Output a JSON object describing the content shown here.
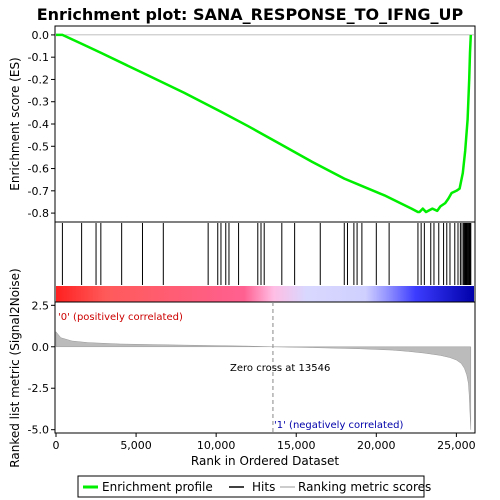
{
  "chart_data": {
    "type": "line",
    "title": "Enrichment plot: SANA_RESPONSE_TO_IFNG_UP",
    "panels": {
      "enrichment": {
        "ylabel": "Enrichment score (ES)",
        "ylim": [
          -0.84,
          0.04
        ],
        "yticks": [
          "0.0",
          "-0.1",
          "-0.2",
          "-0.3",
          "-0.4",
          "-0.5",
          "-0.6",
          "-0.7",
          "-0.8"
        ],
        "ytick_values": [
          0.0,
          -0.1,
          -0.2,
          -0.3,
          -0.4,
          -0.5,
          -0.6,
          -0.7,
          -0.8
        ],
        "series": [
          {
            "name": "Enrichment profile",
            "color": "#00ee00",
            "x": [
              0,
              400,
              1600,
              2800,
              5400,
              8000,
              10300,
              12000,
              13000,
              14000,
              16000,
              18000,
              19000,
              20500,
              21500,
              22200,
              22600,
              22700,
              22900,
              23100,
              23500,
              23800,
              24000,
              24300,
              24500,
              24700,
              25000,
              25200,
              25400,
              25550,
              25700,
              25800,
              25850,
              25900
            ],
            "y": [
              0.0,
              0.0,
              -0.04,
              -0.08,
              -0.17,
              -0.26,
              -0.345,
              -0.41,
              -0.45,
              -0.49,
              -0.57,
              -0.645,
              -0.675,
              -0.72,
              -0.755,
              -0.78,
              -0.795,
              -0.795,
              -0.78,
              -0.795,
              -0.78,
              -0.79,
              -0.77,
              -0.755,
              -0.735,
              -0.71,
              -0.7,
              -0.69,
              -0.62,
              -0.52,
              -0.38,
              -0.2,
              -0.08,
              0.0
            ]
          }
        ]
      },
      "hits": {
        "positions": [
          400,
          1600,
          2500,
          2800,
          4100,
          5400,
          6700,
          9500,
          10100,
          10300,
          10600,
          10800,
          11400,
          12600,
          12800,
          13000,
          14100,
          14900,
          16500,
          18000,
          18200,
          18600,
          18800,
          19100,
          20000,
          20800,
          22600,
          22800,
          23000,
          23400,
          23600,
          23900,
          24200,
          24400,
          24600,
          24900,
          25100,
          25250,
          25350,
          25450,
          25500,
          25550,
          25600,
          25650,
          25700,
          25750,
          25800,
          25850,
          25900
        ]
      },
      "ranking": {
        "ylabel": "Ranked list metric (Signal2Noise)",
        "ylim": [
          -5.2,
          2.7
        ],
        "yticks": [
          "2.5",
          "0.0",
          "-2.5",
          "-5.0"
        ],
        "ytick_values": [
          2.5,
          0.0,
          -2.5,
          -5.0
        ],
        "x": [
          0,
          300,
          1000,
          2000,
          4000,
          8000,
          12000,
          13546,
          16000,
          19000,
          21000,
          22000,
          23000,
          24000,
          24600,
          25000,
          25300,
          25500,
          25650,
          25750,
          25800,
          25850,
          25900
        ],
        "y": [
          0.9,
          0.55,
          0.35,
          0.25,
          0.17,
          0.1,
          0.04,
          0.0,
          -0.05,
          -0.12,
          -0.2,
          -0.28,
          -0.38,
          -0.52,
          -0.65,
          -0.8,
          -1.0,
          -1.3,
          -1.7,
          -2.2,
          -2.9,
          -4.0,
          -5.0
        ]
      }
    },
    "xlabel": "Rank in Ordered Dataset",
    "xlim": [
      0,
      26100
    ],
    "xticks": [
      "0",
      "5,000",
      "10,000",
      "15,000",
      "20,000",
      "25,000"
    ],
    "xtick_values": [
      0,
      5000,
      10000,
      15000,
      20000,
      25000
    ],
    "annotations": {
      "positive": "'0' (positively correlated)",
      "negative": "'1' (negatively correlated)",
      "zero_cross": "Zero cross at 13546",
      "zero_cross_value": 13546
    },
    "legend": {
      "placement": "bottom",
      "items": [
        {
          "label": "Enrichment profile",
          "color": "#00ee00"
        },
        {
          "label": "Hits",
          "color": "#000000"
        },
        {
          "label": "Ranking metric scores",
          "color": "#bbbbbb"
        }
      ]
    },
    "colors": {
      "positive_label": "#cc0000",
      "negative_label": "#0000aa",
      "ranking_fill": "#bbbbbb",
      "zero_cross_line": "#888888"
    }
  }
}
